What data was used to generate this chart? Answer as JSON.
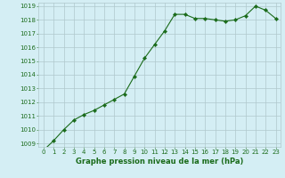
{
  "x": [
    0,
    1,
    2,
    3,
    4,
    5,
    6,
    7,
    8,
    9,
    10,
    11,
    12,
    13,
    14,
    15,
    16,
    17,
    18,
    19,
    20,
    21,
    22,
    23
  ],
  "y": [
    1008.5,
    1009.2,
    1010.0,
    1010.7,
    1011.1,
    1011.4,
    1011.8,
    1012.2,
    1012.6,
    1013.9,
    1015.2,
    1016.2,
    1017.2,
    1018.4,
    1018.4,
    1018.1,
    1018.1,
    1018.0,
    1017.9,
    1018.0,
    1018.3,
    1019.0,
    1018.7,
    1018.1
  ],
  "ylim": [
    1009,
    1019
  ],
  "yticks": [
    1009,
    1010,
    1011,
    1012,
    1013,
    1014,
    1015,
    1016,
    1017,
    1018,
    1019
  ],
  "xticks": [
    0,
    1,
    2,
    3,
    4,
    5,
    6,
    7,
    8,
    9,
    10,
    11,
    12,
    13,
    14,
    15,
    16,
    17,
    18,
    19,
    20,
    21,
    22,
    23
  ],
  "xlabel": "Graphe pression niveau de la mer (hPa)",
  "line_color": "#1a6b1a",
  "marker": "D",
  "marker_size": 2.2,
  "bg_color": "#d4eef4",
  "grid_color": "#b0c8cc",
  "xlabel_color": "#1a6b1a",
  "tick_color": "#1a6b1a",
  "tick_fontsize": 5.0,
  "xlabel_fontsize": 6.0
}
